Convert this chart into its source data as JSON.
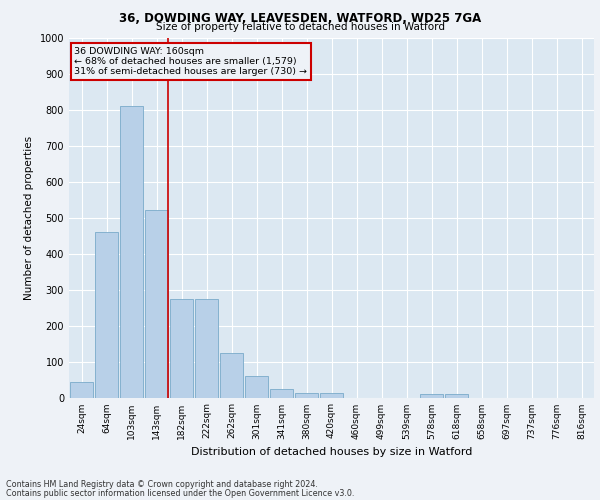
{
  "title_line1": "36, DOWDING WAY, LEAVESDEN, WATFORD, WD25 7GA",
  "title_line2": "Size of property relative to detached houses in Watford",
  "xlabel": "Distribution of detached houses by size in Watford",
  "ylabel": "Number of detached properties",
  "categories": [
    "24sqm",
    "64sqm",
    "103sqm",
    "143sqm",
    "182sqm",
    "222sqm",
    "262sqm",
    "301sqm",
    "341sqm",
    "380sqm",
    "420sqm",
    "460sqm",
    "499sqm",
    "539sqm",
    "578sqm",
    "618sqm",
    "658sqm",
    "697sqm",
    "737sqm",
    "776sqm",
    "816sqm"
  ],
  "values": [
    42,
    460,
    810,
    520,
    275,
    275,
    125,
    60,
    25,
    12,
    12,
    0,
    0,
    0,
    10,
    10,
    0,
    0,
    0,
    0,
    0
  ],
  "bar_color": "#b8d0e8",
  "bar_edge_color": "#7aaaca",
  "vline_color": "#cc0000",
  "annotation_box_edge": "#cc0000",
  "annotation_line1": "36 DOWDING WAY: 160sqm",
  "annotation_line2": "← 68% of detached houses are smaller (1,579)",
  "annotation_line3": "31% of semi-detached houses are larger (730) →",
  "footnote_line1": "Contains HM Land Registry data © Crown copyright and database right 2024.",
  "footnote_line2": "Contains public sector information licensed under the Open Government Licence v3.0.",
  "ylim": [
    0,
    1000
  ],
  "yticks": [
    0,
    100,
    200,
    300,
    400,
    500,
    600,
    700,
    800,
    900,
    1000
  ],
  "background_color": "#eef2f7",
  "plot_background": "#dce8f2",
  "vline_x": 3.45
}
